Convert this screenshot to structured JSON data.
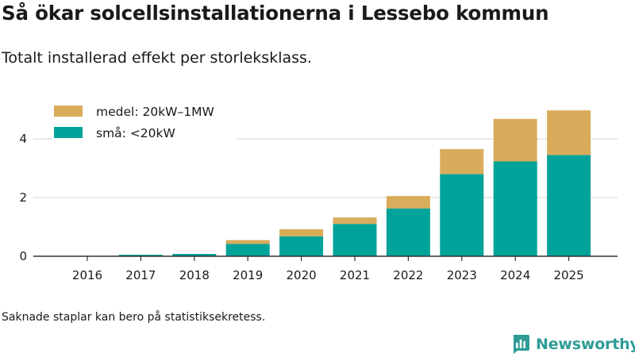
{
  "title": "Så ökar solcellsinstallationerna i Lessebo kommun",
  "subtitle": "Totalt installerad effekt per storleksklass.",
  "note": "Saknade staplar kan bero på statistiksekretess.",
  "brand": {
    "name": "Newsworthy",
    "icon": "newsworthy-logo-icon"
  },
  "chart_data": {
    "type": "bar",
    "stacked": true,
    "title": "",
    "xlabel": "",
    "ylabel": "",
    "ylim": [
      0,
      5.2
    ],
    "yticks": [
      0,
      2,
      4
    ],
    "grid": true,
    "legend_position": "top-left",
    "categories": [
      "2016",
      "2017",
      "2018",
      "2019",
      "2020",
      "2021",
      "2022",
      "2023",
      "2024",
      "2025"
    ],
    "series": [
      {
        "name": "små: <20kW",
        "color": "#00a39a",
        "values": [
          0.01,
          0.05,
          0.08,
          0.42,
          0.68,
          1.1,
          1.63,
          2.8,
          3.23,
          3.45
        ]
      },
      {
        "name": "medel: 20kW–1MW",
        "color": "#d9ac5b",
        "values": [
          0,
          0,
          0,
          0.13,
          0.24,
          0.22,
          0.42,
          0.85,
          1.45,
          1.52
        ]
      }
    ]
  }
}
